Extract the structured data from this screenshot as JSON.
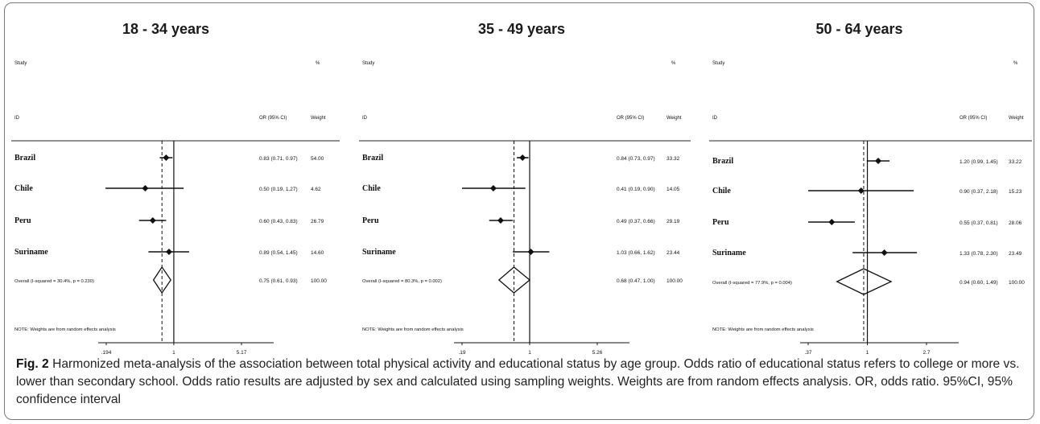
{
  "figure": {
    "caption_label": "Fig. 2",
    "caption_text": "Harmonized meta-analysis of the association between total physical activity and educational status by age group. Odds ratio of educational status refers to college or more vs. lower than secondary school. Odds ratio results are adjusted by sex and calculated using sampling weights. Weights are from random effects analysis. OR, odds ratio. 95%CI, 95% confidence interval"
  },
  "chart_data": [
    {
      "type": "forest",
      "title": "18 - 34 years",
      "header": {
        "study": "Study",
        "id": "ID",
        "pct": "%",
        "or": "OR (95% CI)",
        "weight": "Weight"
      },
      "scale": "log",
      "xlim": [
        0.194,
        5.17
      ],
      "ticks": [
        {
          "value": 0.194,
          "label": ".194"
        },
        {
          "value": 1,
          "label": "1"
        },
        {
          "value": 5.17,
          "label": "5.17"
        }
      ],
      "studies": [
        {
          "name": "Brazil",
          "or": 0.83,
          "lo": 0.71,
          "hi": 0.97,
          "or_text": "0.83 (0.71, 0.97)",
          "weight": "54.00"
        },
        {
          "name": "Chile",
          "or": 0.5,
          "lo": 0.19,
          "hi": 1.27,
          "or_text": "0.50 (0.19, 1.27)",
          "weight": "4.62"
        },
        {
          "name": "Peru",
          "or": 0.6,
          "lo": 0.43,
          "hi": 0.83,
          "or_text": "0.60 (0.43, 0.83)",
          "weight": "26.79"
        },
        {
          "name": "Suriname",
          "or": 0.89,
          "lo": 0.54,
          "hi": 1.45,
          "or_text": "0.89 (0.54, 1.45)",
          "weight": "14.60"
        }
      ],
      "overall": {
        "label": "Overall  (I-squared = 30.4%, p = 0.230)",
        "or": 0.75,
        "lo": 0.61,
        "hi": 0.93,
        "or_text": "0.75 (0.61, 0.93)",
        "weight": "100.00"
      },
      "note": "NOTE: Weights are from random effects analysis"
    },
    {
      "type": "forest",
      "title": "35 - 49 years",
      "header": {
        "study": "Study",
        "id": "ID",
        "pct": "%",
        "or": "OR (95% CI)",
        "weight": "Weight"
      },
      "scale": "log",
      "xlim": [
        0.19,
        5.26
      ],
      "ticks": [
        {
          "value": 0.19,
          "label": ".19"
        },
        {
          "value": 1,
          "label": "1"
        },
        {
          "value": 5.26,
          "label": "5.26"
        }
      ],
      "studies": [
        {
          "name": "Brazil",
          "or": 0.84,
          "lo": 0.73,
          "hi": 0.97,
          "or_text": "0.84 (0.73, 0.97)",
          "weight": "33.32"
        },
        {
          "name": "Chile",
          "or": 0.41,
          "lo": 0.19,
          "hi": 0.9,
          "or_text": "0.41 (0.19, 0.90)",
          "weight": "14.05"
        },
        {
          "name": "Peru",
          "or": 0.49,
          "lo": 0.37,
          "hi": 0.66,
          "or_text": "0.49 (0.37, 0.66)",
          "weight": "29.19"
        },
        {
          "name": "Suriname",
          "or": 1.03,
          "lo": 0.66,
          "hi": 1.62,
          "or_text": "1.03 (0.66, 1.62)",
          "weight": "23.44"
        }
      ],
      "overall": {
        "label": "Overall  (I-squared = 80.3%, p = 0.002)",
        "or": 0.68,
        "lo": 0.47,
        "hi": 1.0,
        "or_text": "0.68 (0.47, 1.00)",
        "weight": "100.00"
      },
      "note": "NOTE: Weights are from random effects analysis"
    },
    {
      "type": "forest",
      "title": "50 - 64 years",
      "header": {
        "study": "Study",
        "id": "ID",
        "pct": "%",
        "or": "OR (95% CI)",
        "weight": "Weight"
      },
      "scale": "log",
      "xlim": [
        0.37,
        2.7
      ],
      "ticks": [
        {
          "value": 0.37,
          "label": ".37"
        },
        {
          "value": 1,
          "label": "1"
        },
        {
          "value": 2.7,
          "label": "2.7"
        }
      ],
      "studies": [
        {
          "name": "Brazil",
          "or": 1.2,
          "lo": 0.99,
          "hi": 1.45,
          "or_text": "1.20 (0.99, 1.45)",
          "weight": "33.22"
        },
        {
          "name": "Chile",
          "or": 0.9,
          "lo": 0.37,
          "hi": 2.18,
          "or_text": "0.90 (0.37, 2.18)",
          "weight": "15.23"
        },
        {
          "name": "Peru",
          "or": 0.55,
          "lo": 0.37,
          "hi": 0.81,
          "or_text": "0.55 (0.37, 0.81)",
          "weight": "28.06"
        },
        {
          "name": "Suriname",
          "or": 1.33,
          "lo": 0.78,
          "hi": 2.3,
          "or_text": "1.33 (0.78, 2.30)",
          "weight": "23.49"
        }
      ],
      "overall": {
        "label": "Overall  (I-squared = 77.9%, p = 0.004)",
        "or": 0.94,
        "lo": 0.6,
        "hi": 1.49,
        "or_text": "0.94 (0.60, 1.49)",
        "weight": "100.00"
      },
      "note": "NOTE: Weights are from random effects analysis"
    }
  ]
}
